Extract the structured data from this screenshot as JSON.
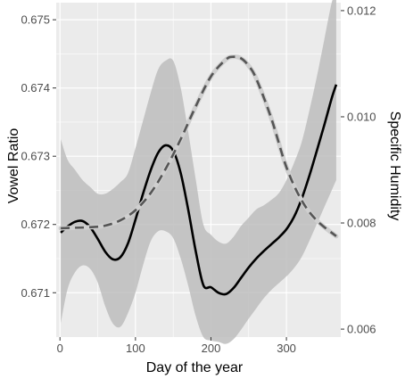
{
  "chart_data": {
    "type": "line",
    "title": "",
    "xlabel": "Day of the year",
    "ylabel": "Vowel Ratio",
    "y2label": "Specific Humidity",
    "xlim": [
      -5,
      372
    ],
    "ylim": [
      0.67035,
      0.67525
    ],
    "y2lim": [
      0.00585,
      0.01215
    ],
    "x_ticks": [
      0,
      100,
      200,
      300
    ],
    "x_tick_labels": [
      "0",
      "100",
      "200",
      "300"
    ],
    "y_ticks": [
      0.671,
      0.672,
      0.673,
      0.674,
      0.675
    ],
    "y_tick_labels": [
      "0.671",
      "0.672",
      "0.673",
      "0.674",
      "0.675"
    ],
    "y2_ticks": [
      0.006,
      0.008,
      0.01,
      0.012
    ],
    "y2_tick_labels": [
      "0.006",
      "0.008",
      "0.010",
      "0.012"
    ],
    "grid": true,
    "background_color": "#ebebeb",
    "grid_color": "#ffffff",
    "series": [
      {
        "axis": "left",
        "style": "solid",
        "color": "#000000",
        "band_color": "#bdbdbd",
        "x": [
          1,
          10,
          20,
          30,
          40,
          50,
          60,
          70,
          80,
          90,
          100,
          110,
          120,
          130,
          140,
          150,
          160,
          170,
          180,
          190,
          200,
          210,
          220,
          230,
          240,
          250,
          260,
          270,
          280,
          290,
          300,
          310,
          320,
          330,
          340,
          350,
          360,
          366
        ],
        "y": [
          0.67188,
          0.67197,
          0.67204,
          0.67205,
          0.67196,
          0.67179,
          0.6716,
          0.67149,
          0.67152,
          0.67172,
          0.67207,
          0.67245,
          0.67279,
          0.67305,
          0.67316,
          0.67308,
          0.67275,
          0.67221,
          0.6716,
          0.67111,
          0.67108,
          0.671,
          0.67098,
          0.67107,
          0.67122,
          0.67137,
          0.6715,
          0.67161,
          0.67171,
          0.67181,
          0.67193,
          0.67211,
          0.67237,
          0.6727,
          0.67307,
          0.67345,
          0.67385,
          0.67405
        ],
        "ci_lower": [
          0.67055,
          0.67105,
          0.6713,
          0.6714,
          0.67135,
          0.67115,
          0.6708,
          0.67055,
          0.6705,
          0.6707,
          0.671,
          0.6714,
          0.67175,
          0.6719,
          0.6719,
          0.6718,
          0.6715,
          0.6711,
          0.67065,
          0.67035,
          0.6703,
          0.67028,
          0.67025,
          0.67032,
          0.67046,
          0.67062,
          0.67077,
          0.67092,
          0.67104,
          0.67114,
          0.67124,
          0.67136,
          0.67152,
          0.67175,
          0.672,
          0.67225,
          0.6725,
          0.67265
        ],
        "ci_upper": [
          0.67325,
          0.67295,
          0.6728,
          0.67265,
          0.67255,
          0.67245,
          0.67245,
          0.67252,
          0.67262,
          0.67275,
          0.67312,
          0.67352,
          0.67392,
          0.67427,
          0.6744,
          0.6744,
          0.674,
          0.67335,
          0.67265,
          0.672,
          0.67185,
          0.67175,
          0.67172,
          0.67182,
          0.67198,
          0.6721,
          0.67222,
          0.67228,
          0.67236,
          0.67246,
          0.67265,
          0.6729,
          0.6732,
          0.67365,
          0.67415,
          0.6747,
          0.67525,
          0.6754
        ]
      },
      {
        "axis": "right",
        "style": "dashed",
        "color": "#555555",
        "band_color": "#cfcfcf",
        "x": [
          1,
          20,
          40,
          60,
          80,
          100,
          120,
          140,
          160,
          180,
          200,
          220,
          230,
          240,
          250,
          260,
          280,
          300,
          320,
          340,
          366
        ],
        "y": [
          0.0079,
          0.00791,
          0.00792,
          0.00795,
          0.00805,
          0.00824,
          0.00856,
          0.00902,
          0.00958,
          0.0102,
          0.01076,
          0.01108,
          0.01113,
          0.0111,
          0.01096,
          0.01072,
          0.00997,
          0.00905,
          0.00843,
          0.00805,
          0.00775
        ]
      }
    ]
  }
}
